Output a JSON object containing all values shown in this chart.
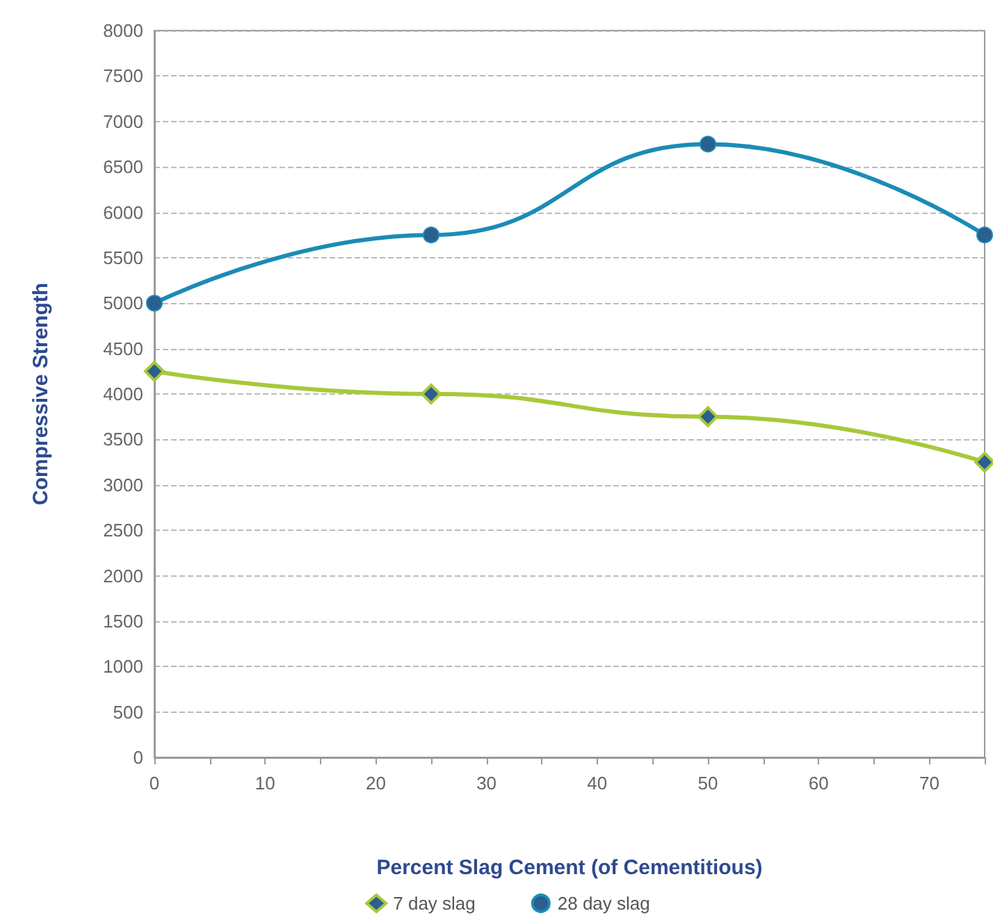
{
  "chart_data": {
    "type": "line",
    "xlabel": "Percent Slag Cement (of Cementitious)",
    "ylabel": "Compressive Strength",
    "x": [
      0,
      25,
      50,
      75
    ],
    "series": [
      {
        "name": "7 day slag",
        "color": "#a8c83a",
        "marker": "diamond",
        "values": [
          4250,
          4000,
          3750,
          3250
        ]
      },
      {
        "name": "28 day slag",
        "color": "#1b8bb6",
        "marker": "circle",
        "values": [
          5000,
          5750,
          6750,
          5750
        ]
      }
    ],
    "xlim": [
      0,
      75
    ],
    "xticks": [
      0,
      {
        "value": 5,
        "label": null
      },
      10,
      {
        "value": 15,
        "label": null
      },
      20,
      {
        "value": 25,
        "label": null
      },
      30,
      {
        "value": 35,
        "label": null
      },
      40,
      {
        "value": 45,
        "label": null
      },
      50,
      {
        "value": 55,
        "label": null
      },
      60,
      {
        "value": 65,
        "label": null
      },
      70,
      {
        "value": 75,
        "label": null
      }
    ],
    "ylim": [
      0,
      8000
    ],
    "yticks": [
      0,
      500,
      1000,
      1500,
      2000,
      2500,
      3000,
      3500,
      4000,
      4500,
      5000,
      5500,
      6000,
      6500,
      7000,
      7500,
      8000
    ],
    "grid": "y",
    "legend": "bottom"
  }
}
